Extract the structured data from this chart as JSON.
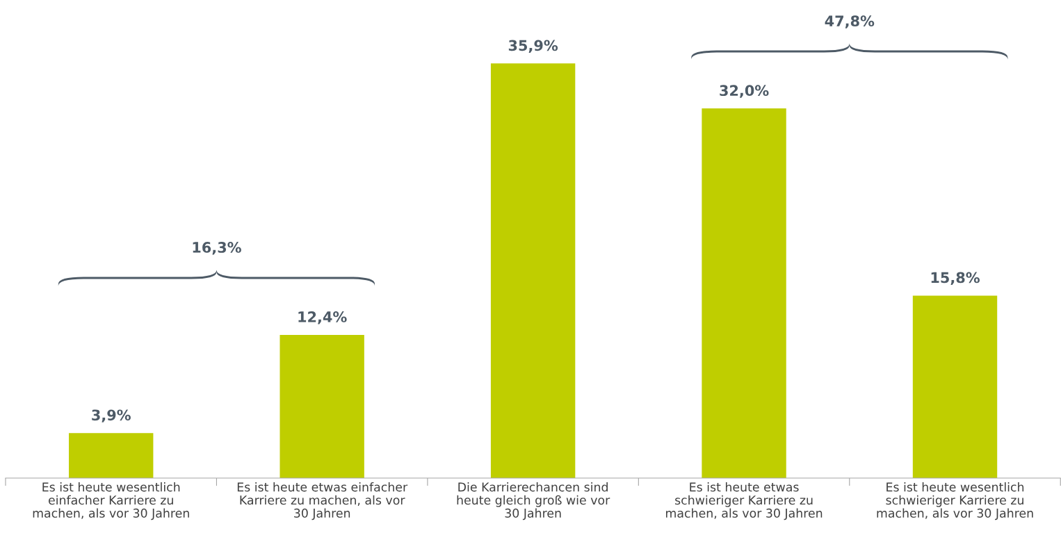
{
  "chart_data": {
    "type": "bar",
    "categories": [
      "Es ist heute wesentlich\neinfacher Karriere zu\nmachen, als vor 30 Jahren",
      "Es ist heute etwas einfacher\nKarriere zu machen, als vor\n30 Jahren",
      "Die Karrierechancen sind\nheute gleich groß wie vor\n30 Jahren",
      "Es ist heute etwas\nschwieriger Karriere zu\nmachen, als vor 30 Jahren",
      "Es ist heute wesentlich\nschwieriger Karriere zu\nmachen, als vor 30 Jahren"
    ],
    "values": [
      3.9,
      12.4,
      35.9,
      32.0,
      15.8
    ],
    "value_labels": [
      "3,9%",
      "12,4%",
      "35,9%",
      "32,0%",
      "15,8%"
    ],
    "color": "#bfce00",
    "annotations": [
      "16,3%",
      "47,8%"
    ],
    "grid": false,
    "legend": false
  }
}
